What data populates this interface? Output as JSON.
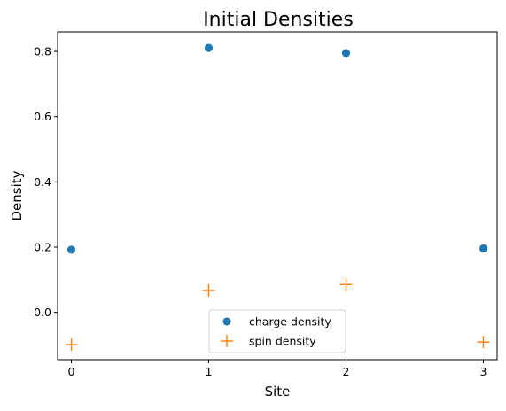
{
  "chart_data": {
    "type": "scatter",
    "title": "Initial Densities",
    "xlabel": "Site",
    "ylabel": "Density",
    "xlim": [
      -0.1,
      3.1
    ],
    "ylim": [
      -0.145,
      0.86
    ],
    "xticks": [
      0,
      1,
      2,
      3
    ],
    "yticks": [
      0.0,
      0.2,
      0.4,
      0.6,
      0.8
    ],
    "xtick_labels": [
      "0",
      "1",
      "2",
      "3"
    ],
    "ytick_labels": [
      "0.0",
      "0.2",
      "0.4",
      "0.6",
      "0.8"
    ],
    "grid": false,
    "legend_position": "lower center",
    "series": [
      {
        "name": "charge density",
        "marker": "circle",
        "color": "#1f77b4",
        "x": [
          0,
          1,
          2,
          3
        ],
        "y": [
          0.192,
          0.811,
          0.795,
          0.196
        ]
      },
      {
        "name": "spin density",
        "marker": "plus",
        "color": "#ff7f0e",
        "x": [
          0,
          1,
          2,
          3
        ],
        "y": [
          -0.099,
          0.067,
          0.085,
          -0.091
        ]
      }
    ]
  }
}
